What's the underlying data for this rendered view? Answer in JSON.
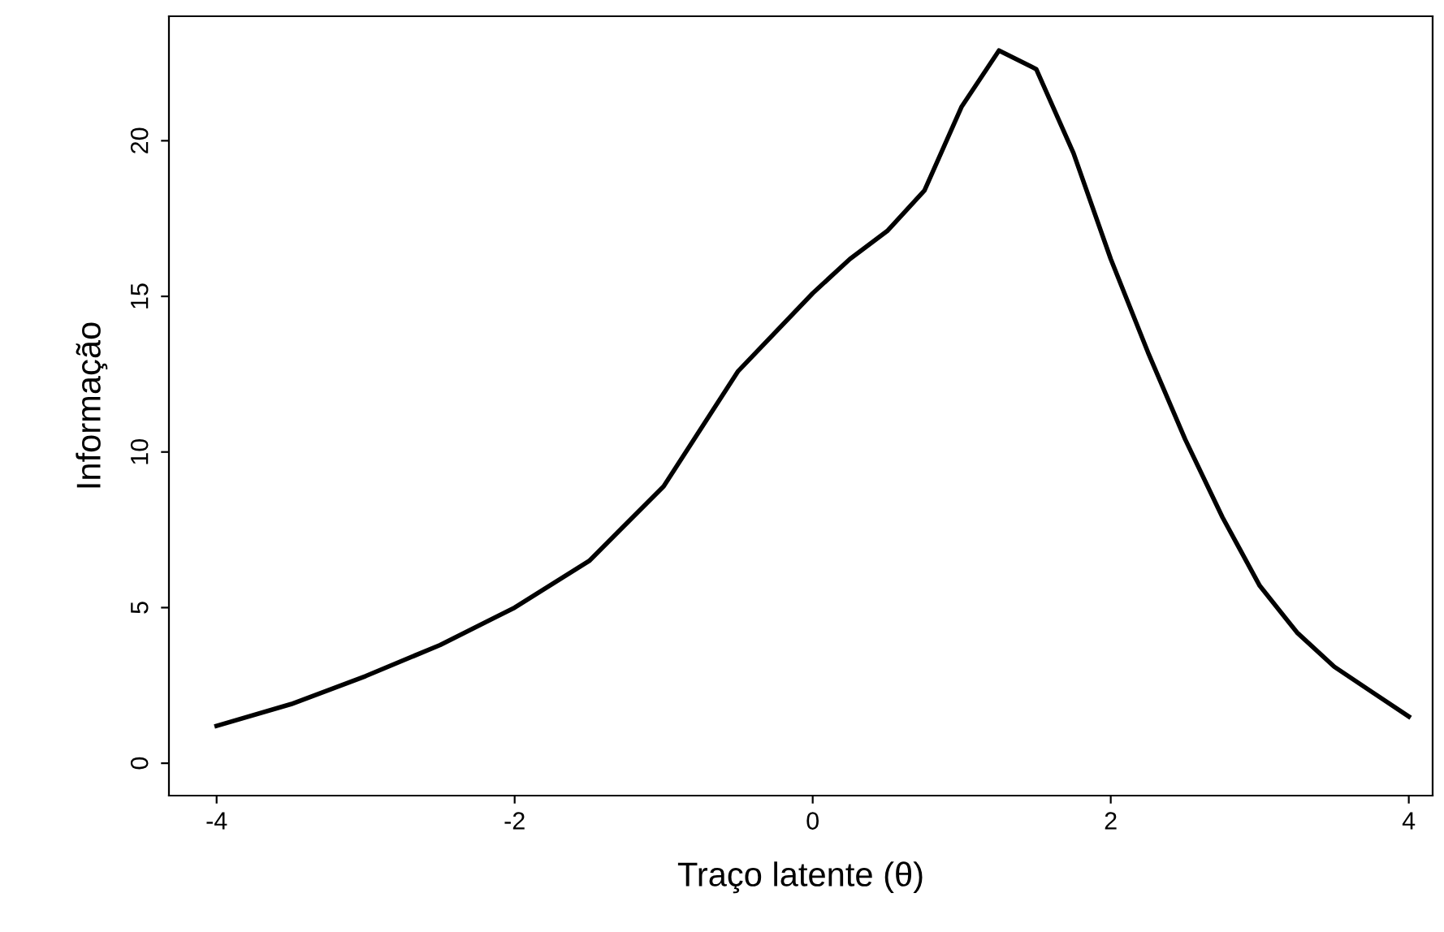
{
  "chart_data": {
    "type": "line",
    "xlabel": "Traço latente (θ)",
    "ylabel": "Informação",
    "x": [
      -4,
      -3.5,
      -3,
      -2.5,
      -2,
      -1.5,
      -1,
      -0.5,
      0,
      0.25,
      0.5,
      0.75,
      1,
      1.25,
      1.5,
      1.75,
      2,
      2.25,
      2.5,
      2.75,
      3,
      3.25,
      3.5,
      3.75,
      4
    ],
    "series": [
      {
        "color": "#000000",
        "values": [
          1.2,
          1.9,
          2.8,
          3.8,
          5.0,
          6.5,
          8.9,
          12.6,
          15.1,
          16.2,
          17.1,
          18.4,
          21.1,
          22.9,
          22.3,
          19.6,
          16.2,
          13.2,
          10.4,
          7.9,
          5.7,
          4.2,
          3.1,
          2.3,
          1.5
        ]
      }
    ],
    "xlim": [
      -4.32,
      4.16
    ],
    "ylim": [
      -1.04,
      24
    ],
    "xticks": [
      -4,
      -2,
      0,
      2,
      4
    ],
    "yticks": [
      0,
      5,
      10,
      15,
      20
    ],
    "grid": false,
    "legend": false,
    "marker": "none",
    "line_style": "solid"
  }
}
